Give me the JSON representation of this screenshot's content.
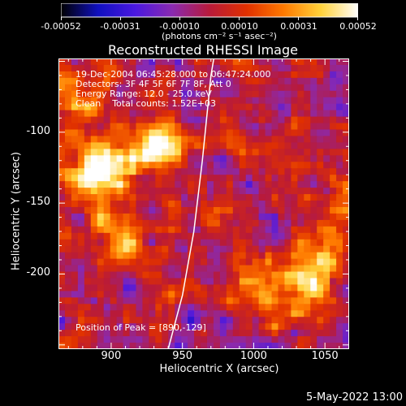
{
  "colorbar": {
    "tick_labels": [
      "-0.00052",
      "-0.00031",
      "-0.00010",
      "0.00010",
      "0.00031",
      "0.00052"
    ],
    "units": "(photons cm⁻² s⁻¹ asec⁻²)",
    "colors": [
      "#000000",
      "#1010c0",
      "#4a18e0",
      "#8a2ab0",
      "#b81a3a",
      "#e03000",
      "#ff7a00",
      "#ffd23a",
      "#ffffff"
    ]
  },
  "chart_data": {
    "type": "heatmap",
    "title": "Reconstructed RHESSI Image",
    "xlabel": "Heliocentric X (arcsec)",
    "ylabel": "Heliocentric Y (arcsec)",
    "xlim": [
      863,
      1067
    ],
    "ylim": [
      -253,
      -48
    ],
    "x_ticks": [
      900,
      950,
      1000,
      1050
    ],
    "y_ticks": [
      -100,
      -150,
      -200
    ],
    "info_lines": [
      "19-Dec-2004 06:45:28.000 to 06:47:24.000",
      "Detectors: 3F 4F 5F 6F 7F 8F, Att 0",
      "Energy Range: 12.0 - 25.0 keV",
      "Clean    Total counts: 1.52E+03"
    ],
    "peak_label": "Position of Peak = [890,-129]",
    "peak": [
      890,
      -129
    ],
    "color_range": [
      -0.00052,
      0.00052
    ],
    "limb_curve": [
      [
        940,
        -253
      ],
      [
        950,
        -215
      ],
      [
        958,
        -170
      ],
      [
        964,
        -120
      ],
      [
        970,
        -60
      ],
      [
        972,
        -48
      ]
    ],
    "bright_regions": [
      {
        "x": 930,
        "y": -110,
        "intensity": 0.00048
      },
      {
        "x": 890,
        "y": -129,
        "intensity": 0.00052
      },
      {
        "x": 880,
        "y": -80,
        "intensity": 0.0003
      },
      {
        "x": 905,
        "y": -175,
        "intensity": 0.00034
      },
      {
        "x": 1040,
        "y": -205,
        "intensity": 0.00045
      },
      {
        "x": 1005,
        "y": -210,
        "intensity": 0.00028
      },
      {
        "x": 1060,
        "y": -155,
        "intensity": 0.00025
      }
    ]
  },
  "footer_date": "5-May-2022 13:00"
}
